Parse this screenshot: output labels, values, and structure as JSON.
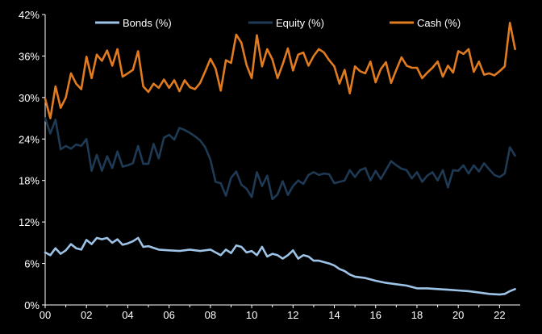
{
  "chart_data": {
    "type": "line",
    "title": "",
    "xlabel": "",
    "ylabel": "",
    "x_tick_labels": [
      "00",
      "02",
      "04",
      "06",
      "08",
      "10",
      "12",
      "14",
      "16",
      "18",
      "20",
      "22"
    ],
    "y_tick_labels": [
      "0%",
      "6%",
      "12%",
      "18%",
      "24%",
      "30%",
      "36%",
      "42%"
    ],
    "xlim": [
      0,
      23
    ],
    "ylim": [
      0,
      42
    ],
    "grid": false,
    "legend_position": "top",
    "series": [
      {
        "name": "Bonds (%)",
        "color": "#9dc3e6",
        "x": [
          0,
          0.25,
          0.5,
          0.75,
          1.0,
          1.25,
          1.5,
          1.75,
          2.0,
          2.25,
          2.5,
          2.75,
          3.0,
          3.25,
          3.5,
          3.75,
          4.0,
          4.25,
          4.5,
          4.75,
          5.0,
          5.5,
          6.0,
          6.5,
          7.0,
          7.5,
          8.0,
          8.25,
          8.5,
          8.75,
          9.0,
          9.25,
          9.5,
          9.75,
          10.0,
          10.25,
          10.5,
          10.75,
          11.0,
          11.25,
          11.5,
          11.75,
          12.0,
          12.25,
          12.5,
          12.75,
          13.0,
          13.25,
          13.5,
          13.75,
          14.0,
          14.25,
          14.5,
          14.75,
          15.0,
          15.5,
          16.0,
          16.5,
          17.0,
          17.5,
          18.0,
          18.5,
          19.0,
          19.5,
          20.0,
          20.5,
          21.0,
          21.5,
          22.0,
          22.25,
          22.5,
          22.75
        ],
        "y": [
          7.6,
          7.2,
          8.2,
          7.4,
          7.9,
          8.8,
          8.2,
          8.0,
          9.4,
          8.8,
          9.7,
          9.5,
          9.7,
          9.0,
          9.5,
          8.7,
          8.9,
          9.2,
          9.7,
          8.4,
          8.5,
          8.0,
          7.9,
          7.8,
          8.0,
          7.8,
          8.0,
          7.6,
          7.2,
          8.0,
          7.5,
          8.6,
          8.4,
          7.6,
          7.8,
          7.2,
          8.4,
          7.0,
          7.4,
          7.2,
          6.7,
          7.2,
          7.9,
          6.7,
          7.2,
          7.0,
          6.4,
          6.4,
          6.2,
          6.0,
          5.7,
          5.2,
          4.9,
          4.4,
          4.1,
          3.9,
          3.5,
          3.2,
          3.0,
          2.8,
          2.4,
          2.4,
          2.3,
          2.2,
          2.1,
          2.0,
          1.8,
          1.6,
          1.5,
          1.6,
          2.0,
          2.3
        ]
      },
      {
        "name": "Equity (%)",
        "color": "#1f3a55",
        "x": [
          0,
          0.25,
          0.5,
          0.75,
          1.0,
          1.25,
          1.5,
          1.75,
          2.0,
          2.25,
          2.5,
          2.75,
          3.0,
          3.25,
          3.5,
          3.75,
          4.0,
          4.25,
          4.5,
          4.75,
          5.0,
          5.25,
          5.5,
          5.75,
          6.0,
          6.25,
          6.5,
          6.75,
          7.0,
          7.25,
          7.5,
          7.75,
          8.0,
          8.25,
          8.5,
          8.75,
          9.0,
          9.25,
          9.5,
          9.75,
          10.0,
          10.25,
          10.5,
          10.75,
          11.0,
          11.25,
          11.5,
          11.75,
          12.0,
          12.25,
          12.5,
          12.75,
          13.0,
          13.25,
          13.5,
          13.75,
          14.0,
          14.25,
          14.5,
          14.75,
          15.0,
          15.25,
          15.5,
          15.75,
          16.0,
          16.25,
          16.5,
          16.75,
          17.0,
          17.25,
          17.5,
          17.75,
          18.0,
          18.25,
          18.5,
          18.75,
          19.0,
          19.25,
          19.5,
          19.75,
          20.0,
          20.25,
          20.5,
          20.75,
          21.0,
          21.25,
          21.5,
          21.75,
          22.0,
          22.25,
          22.5,
          22.75
        ],
        "y": [
          27.0,
          24.8,
          26.8,
          22.5,
          23.0,
          22.6,
          23.2,
          23.0,
          24.0,
          19.4,
          21.7,
          19.4,
          21.5,
          19.8,
          22.2,
          20.0,
          20.2,
          20.5,
          23.0,
          20.4,
          20.4,
          23.3,
          21.2,
          24.2,
          24.6,
          23.9,
          25.6,
          25.3,
          24.9,
          24.4,
          23.8,
          22.8,
          21.0,
          17.8,
          17.6,
          15.8,
          18.4,
          19.3,
          17.4,
          16.8,
          15.6,
          19.2,
          17.2,
          18.7,
          15.3,
          16.0,
          17.9,
          15.9,
          17.2,
          18.0,
          17.5,
          18.8,
          19.2,
          18.8,
          19.0,
          18.9,
          17.6,
          17.8,
          18.0,
          19.5,
          18.5,
          19.5,
          19.8,
          18.0,
          19.4,
          18.2,
          19.5,
          20.8,
          20.2,
          19.7,
          19.5,
          18.3,
          19.2,
          17.8,
          18.7,
          19.2,
          18.0,
          19.5,
          17.0,
          19.5,
          19.4,
          20.2,
          19.0,
          20.2,
          19.3,
          20.5,
          19.6,
          18.8,
          18.5,
          19.0,
          22.8,
          21.6
        ]
      },
      {
        "name": "Cash (%)",
        "color": "#e07b20",
        "x": [
          0,
          0.25,
          0.5,
          0.75,
          1.0,
          1.25,
          1.5,
          1.75,
          2.0,
          2.25,
          2.5,
          2.75,
          3.0,
          3.25,
          3.5,
          3.75,
          4.0,
          4.25,
          4.5,
          4.75,
          5.0,
          5.25,
          5.5,
          5.75,
          6.0,
          6.25,
          6.5,
          6.75,
          7.0,
          7.25,
          7.5,
          7.75,
          8.0,
          8.25,
          8.5,
          8.75,
          9.0,
          9.25,
          9.5,
          9.75,
          10.0,
          10.25,
          10.5,
          10.75,
          11.0,
          11.25,
          11.5,
          11.75,
          12.0,
          12.25,
          12.5,
          12.75,
          13.0,
          13.25,
          13.5,
          13.75,
          14.0,
          14.25,
          14.5,
          14.75,
          15.0,
          15.25,
          15.5,
          15.75,
          16.0,
          16.25,
          16.5,
          16.75,
          17.0,
          17.25,
          17.5,
          17.75,
          18.0,
          18.25,
          18.5,
          18.75,
          19.0,
          19.25,
          19.5,
          19.75,
          20.0,
          20.25,
          20.5,
          20.75,
          21.0,
          21.25,
          21.5,
          21.75,
          22.0,
          22.25,
          22.5,
          22.75
        ],
        "y": [
          29.8,
          27.0,
          31.6,
          28.5,
          30.0,
          33.5,
          32.0,
          31.2,
          35.9,
          32.8,
          36.2,
          35.3,
          36.8,
          34.6,
          37.0,
          33.0,
          33.5,
          34.0,
          36.7,
          31.6,
          30.8,
          32.0,
          31.4,
          32.6,
          31.4,
          32.5,
          30.9,
          32.5,
          31.5,
          31.2,
          32.1,
          33.8,
          35.6,
          34.2,
          31.0,
          35.4,
          35.0,
          39.1,
          37.9,
          34.7,
          32.8,
          39.0,
          34.5,
          37.0,
          35.5,
          32.8,
          34.8,
          37.1,
          33.9,
          36.2,
          36.5,
          34.6,
          36.0,
          37.0,
          36.5,
          35.4,
          34.5,
          32.0,
          34.0,
          30.6,
          34.5,
          33.8,
          33.5,
          35.2,
          32.2,
          34.1,
          35.1,
          32.1,
          34.0,
          35.8,
          34.6,
          34.3,
          34.3,
          32.8,
          33.6,
          34.3,
          35.2,
          33.0,
          34.6,
          33.6,
          36.7,
          36.3,
          37.0,
          33.7,
          35.2,
          33.3,
          33.5,
          33.2,
          33.8,
          34.5,
          40.8,
          37.0
        ]
      }
    ]
  }
}
